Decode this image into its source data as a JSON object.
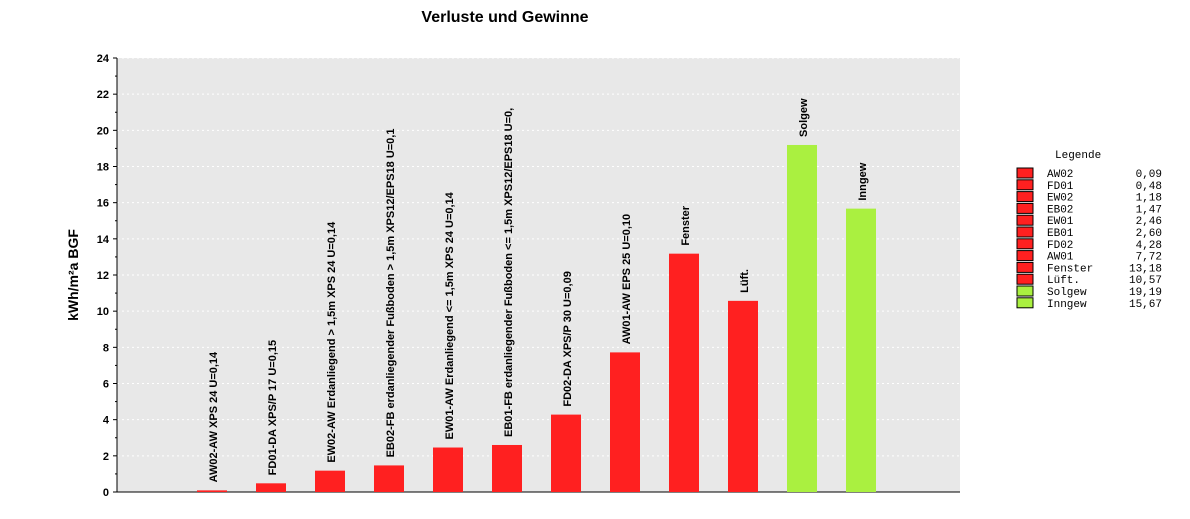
{
  "chart_data": {
    "type": "bar",
    "title": "Verluste und Gewinne",
    "ylabel": "kWh/m²a BGF",
    "xlabel": "",
    "ylim": [
      0,
      24
    ],
    "yticks": [
      0,
      2,
      4,
      6,
      8,
      10,
      12,
      14,
      16,
      18,
      20,
      22,
      24
    ],
    "grid": true,
    "legend_position": "right",
    "bars": [
      {
        "label": "AW02-AW XPS 24 U=0,14",
        "value": 0.09,
        "color": "#ff2020"
      },
      {
        "label": "FD01-DA XPS/P 17 U=0,15",
        "value": 0.48,
        "color": "#ff2020"
      },
      {
        "label": "EW02-AW Erdanliegend > 1,5m XPS 24 U=0,14",
        "value": 1.18,
        "color": "#ff2020"
      },
      {
        "label": "EB02-FB  erdanliegender Fußboden > 1,5m XPS12/EPS18 U=0,1",
        "value": 1.47,
        "color": "#ff2020"
      },
      {
        "label": "EW01-AW Erdanliegend <= 1,5m XPS 24 U=0,14",
        "value": 2.46,
        "color": "#ff2020"
      },
      {
        "label": "EB01-FB  erdanliegender Fußboden <= 1,5m XPS12/EPS18 U=0,",
        "value": 2.6,
        "color": "#ff2020"
      },
      {
        "label": "FD02-DA XPS/P 30 U=0,09",
        "value": 4.28,
        "color": "#ff2020"
      },
      {
        "label": "AW01-AW EPS 25 U=0,10",
        "value": 7.72,
        "color": "#ff2020"
      },
      {
        "label": "Fenster",
        "value": 13.18,
        "color": "#ff2020"
      },
      {
        "label": "Lüft.",
        "value": 10.57,
        "color": "#ff2020"
      },
      {
        "label": "Solgew",
        "value": 19.19,
        "color": "#aaf040"
      },
      {
        "label": "Inngew",
        "value": 15.67,
        "color": "#aaf040"
      }
    ],
    "legend": {
      "title": "Legende",
      "items": [
        {
          "name": "AW02",
          "value": "0,09",
          "color": "#ff2020"
        },
        {
          "name": "FD01",
          "value": "0,48",
          "color": "#ff2020"
        },
        {
          "name": "EW02",
          "value": "1,18",
          "color": "#ff2020"
        },
        {
          "name": "EB02",
          "value": "1,47",
          "color": "#ff2020"
        },
        {
          "name": "EW01",
          "value": "2,46",
          "color": "#ff2020"
        },
        {
          "name": "EB01",
          "value": "2,60",
          "color": "#ff2020"
        },
        {
          "name": "FD02",
          "value": "4,28",
          "color": "#ff2020"
        },
        {
          "name": "AW01",
          "value": "7,72",
          "color": "#ff2020"
        },
        {
          "name": "Fenster",
          "value": "13,18",
          "color": "#ff2020"
        },
        {
          "name": "Lüft.",
          "value": "10,57",
          "color": "#ff2020"
        },
        {
          "name": "Solgew",
          "value": "19,19",
          "color": "#aaf040"
        },
        {
          "name": "Inngew",
          "value": "15,67",
          "color": "#aaf040"
        }
      ]
    },
    "colors": {
      "plot_background": "#e8e8e8",
      "loss": "#ff2020",
      "gain": "#aaf040"
    }
  }
}
